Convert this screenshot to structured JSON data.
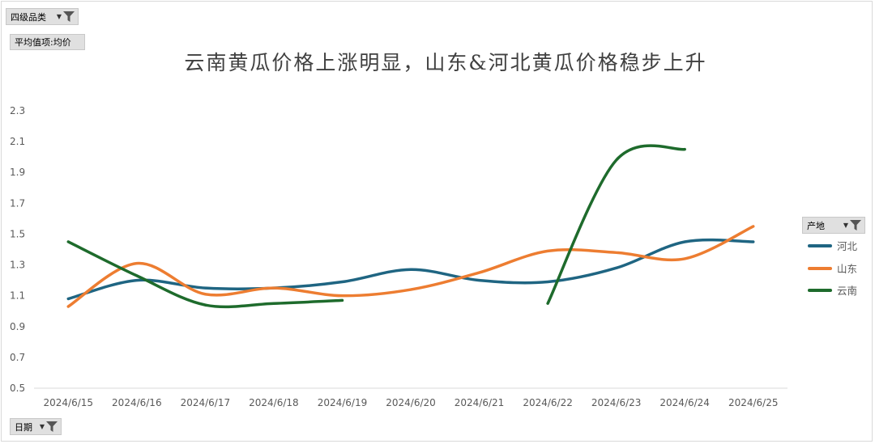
{
  "filters": {
    "category_label": "四级品类",
    "measure_label": "平均值项:均价",
    "series_field_label": "产地",
    "axis_field_label": "日期"
  },
  "chart_data": {
    "type": "line",
    "title": "云南黄瓜价格上涨明显，山东&河北黄瓜价格稳步上升",
    "categories": [
      "2024/6/15",
      "2024/6/16",
      "2024/6/17",
      "2024/6/18",
      "2024/6/19",
      "2024/6/20",
      "2024/6/21",
      "2024/6/22",
      "2024/6/23",
      "2024/6/24",
      "2024/6/25"
    ],
    "ylim": [
      0.5,
      2.3
    ],
    "yticks": [
      "0.5",
      "0.7",
      "0.9",
      "1.1",
      "1.3",
      "1.5",
      "1.7",
      "1.9",
      "2.1",
      "2.3"
    ],
    "smooth": true,
    "legend_position": "right",
    "grid": false,
    "series": [
      {
        "name": "河北",
        "color": "#1f6582",
        "values": [
          1.08,
          1.2,
          1.15,
          1.15,
          1.19,
          1.27,
          1.2,
          1.19,
          1.28,
          1.45,
          1.45
        ]
      },
      {
        "name": "山东",
        "color": "#ed7d31",
        "values": [
          1.03,
          1.31,
          1.11,
          1.15,
          1.1,
          1.14,
          1.25,
          1.39,
          1.38,
          1.34,
          1.55
        ]
      },
      {
        "name": "云南",
        "color": "#1e6b2c",
        "values": [
          1.45,
          1.23,
          1.04,
          1.05,
          1.07,
          null,
          null,
          1.05,
          1.98,
          2.05,
          null
        ]
      }
    ]
  }
}
